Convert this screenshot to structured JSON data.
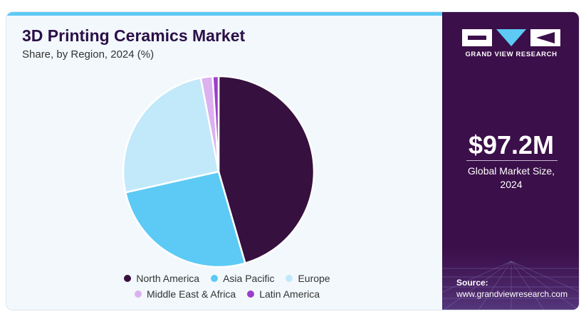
{
  "title": "3D Printing Ceramics Market",
  "subtitle": "Share, by Region, 2024 (%)",
  "chart_data": {
    "type": "pie",
    "title": "3D Printing Ceramics Market",
    "subtitle": "Share, by Region, 2024 (%)",
    "categories": [
      "North America",
      "Asia Pacific",
      "Europe",
      "Middle East & Africa",
      "Latin America"
    ],
    "values": [
      45.5,
      26.0,
      25.5,
      2.0,
      1.0
    ],
    "colors": [
      "#36103f",
      "#5ccaf5",
      "#c2e9fa",
      "#dcb1ef",
      "#9b3ec9"
    ],
    "start_angle_deg": 0,
    "direction": "clockwise",
    "legend_position": "bottom"
  },
  "legend": {
    "row1": [
      "North America",
      "Asia Pacific",
      "Europe"
    ],
    "row2": [
      "Middle East & Africa",
      "Latin America"
    ]
  },
  "brand": {
    "name": "GRAND VIEW RESEARCH"
  },
  "market": {
    "size": "$97.2M",
    "label_line1": "Global Market Size,",
    "label_line2": "2024"
  },
  "source": {
    "label": "Source:",
    "url": "www.grandviewresearch.com"
  },
  "colors": {
    "panel": "#3b0f49",
    "accent": "#5ccaf5",
    "title": "#2b0f47"
  }
}
